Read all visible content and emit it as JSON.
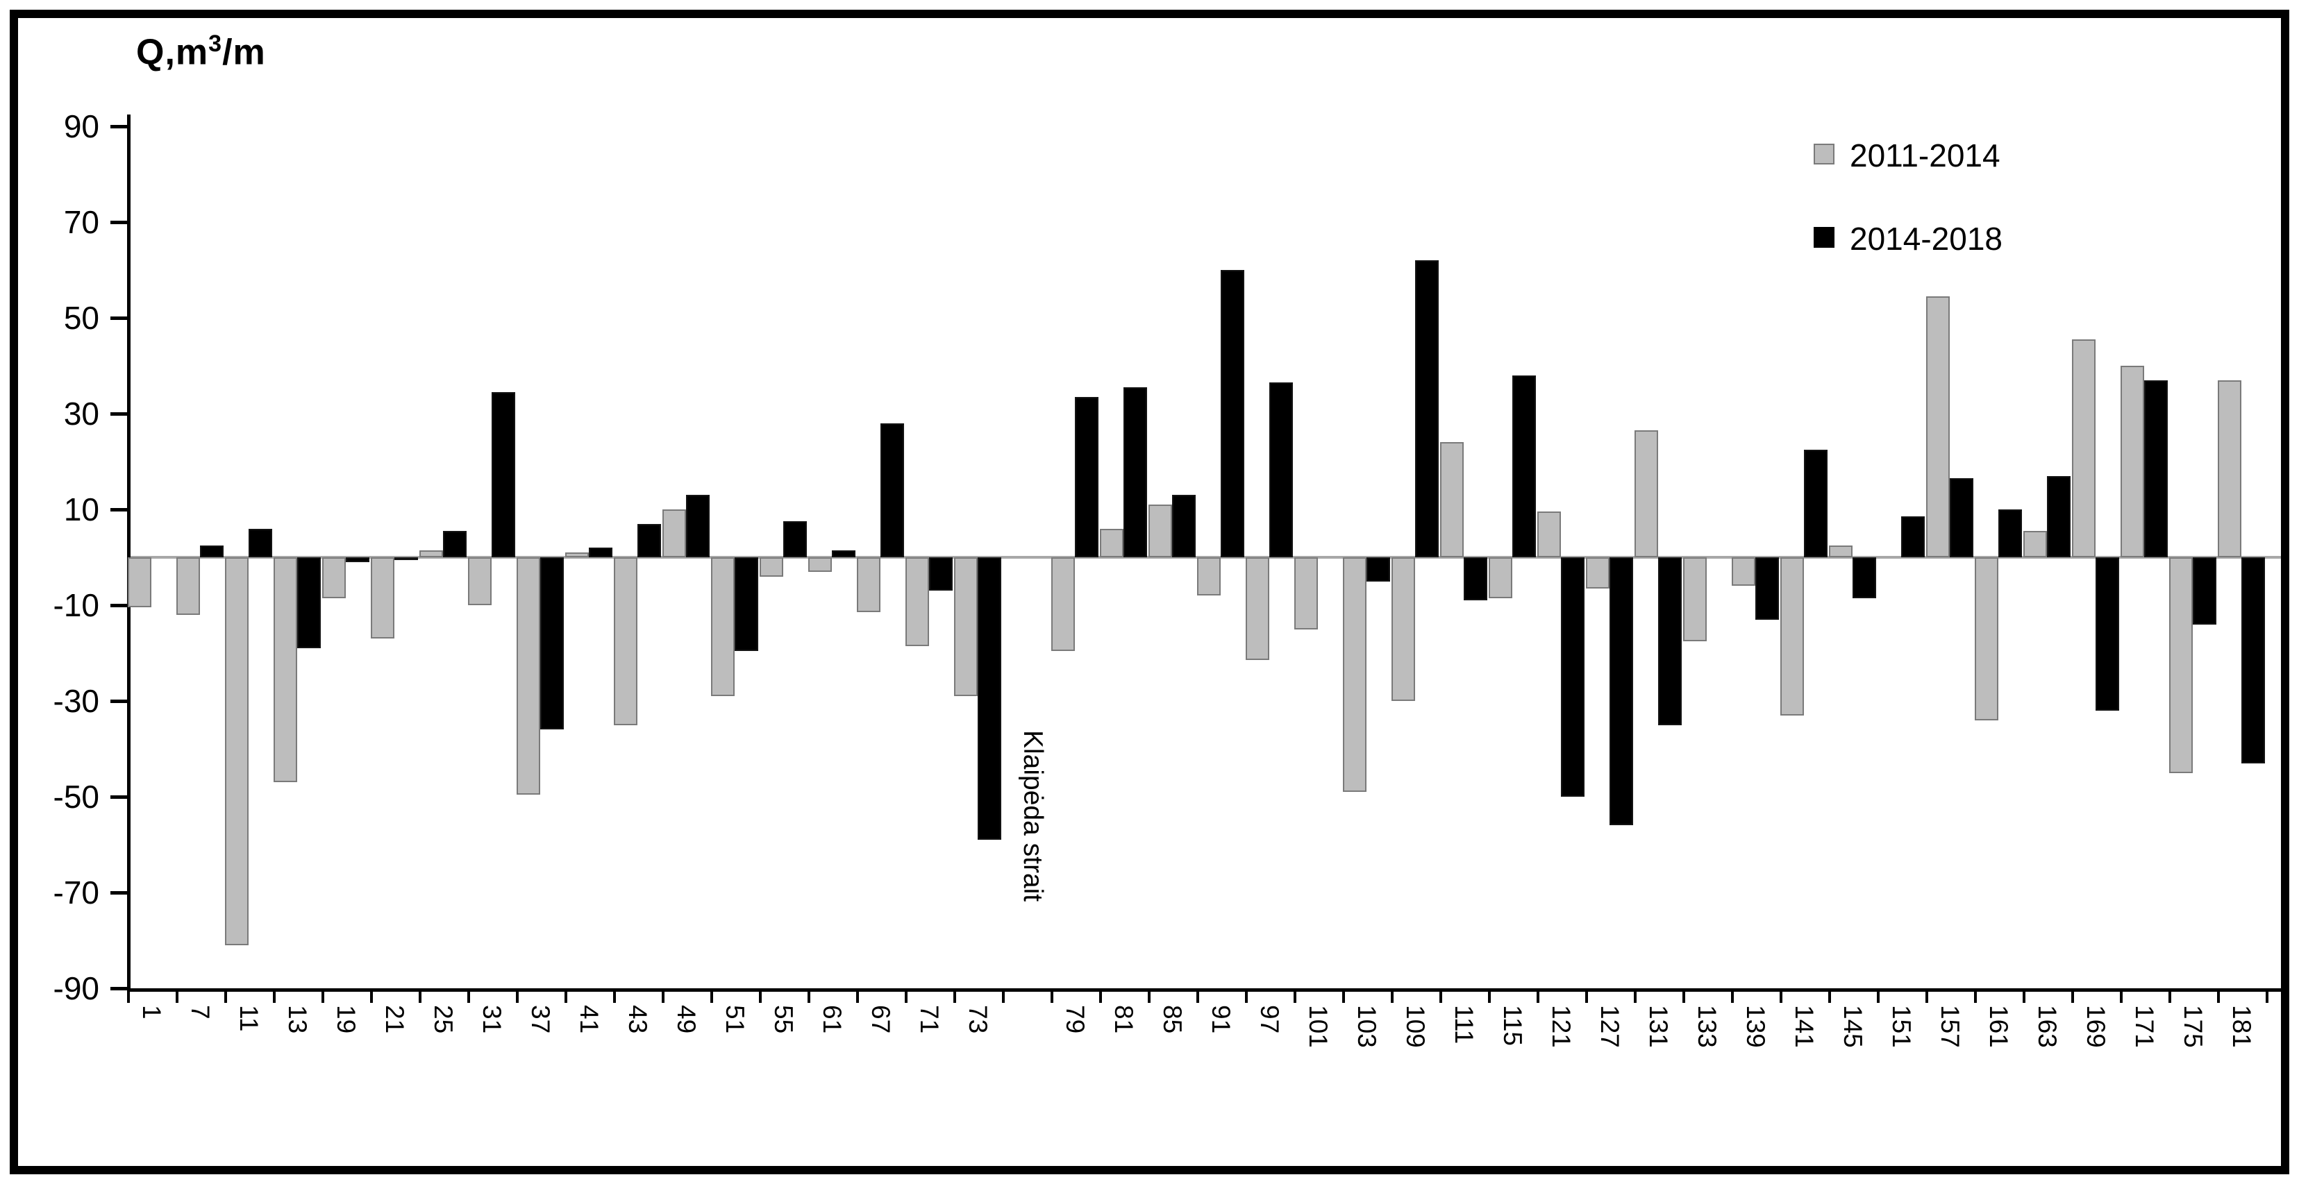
{
  "chart_data": {
    "type": "bar",
    "title": {
      "prefix": "Q,m",
      "sup": "3",
      "suffix": "/m"
    },
    "ylim": [
      -90,
      90
    ],
    "yticks": [
      90,
      70,
      50,
      30,
      10,
      -10,
      -30,
      -50,
      -70,
      -90
    ],
    "grid": "off",
    "legend_position": "top-right",
    "annotation": "Klaipėda strait",
    "gap_after_index": 17,
    "categories": [
      "1",
      "7",
      "11",
      "13",
      "19",
      "21",
      "25",
      "31",
      "37",
      "41",
      "43",
      "49",
      "51",
      "55",
      "61",
      "67",
      "71",
      "73",
      "79",
      "81",
      "85",
      "91",
      "97",
      "101",
      "103",
      "109",
      "111",
      "115",
      "121",
      "127",
      "131",
      "133",
      "139",
      "141",
      "145",
      "151",
      "157",
      "161",
      "163",
      "169",
      "171",
      "175",
      "181"
    ],
    "series": [
      {
        "name": "2011-2014",
        "color": "#bdbdbd",
        "values": [
          -10.5,
          -12,
          -81,
          -47,
          -8.5,
          -17,
          1.5,
          -10,
          -49.5,
          1,
          -35,
          10,
          -29,
          -4,
          -3,
          -11.5,
          -18.5,
          -29,
          -19.5,
          6,
          11,
          -8,
          -21.5,
          -15,
          -49,
          -30,
          24,
          -8.5,
          9.5,
          -6.5,
          26.5,
          -17.5,
          -6,
          -33,
          2.5,
          0,
          54.5,
          -34,
          5.5,
          45.5,
          40,
          -45,
          37
        ]
      },
      {
        "name": "2014-2018",
        "color": "#000000",
        "values": [
          0,
          2.5,
          6,
          -19,
          -1,
          -0.5,
          5.5,
          34.5,
          -36,
          2,
          7,
          13,
          -19.5,
          7.5,
          1.5,
          28,
          -7,
          -59,
          33.5,
          35.5,
          13,
          60,
          36.5,
          0,
          -5,
          62,
          -9,
          38,
          -50,
          -56,
          -35,
          0,
          -13,
          22.5,
          -8.5,
          8.5,
          16.5,
          10,
          17,
          -32,
          37,
          -14,
          -43
        ]
      }
    ]
  }
}
